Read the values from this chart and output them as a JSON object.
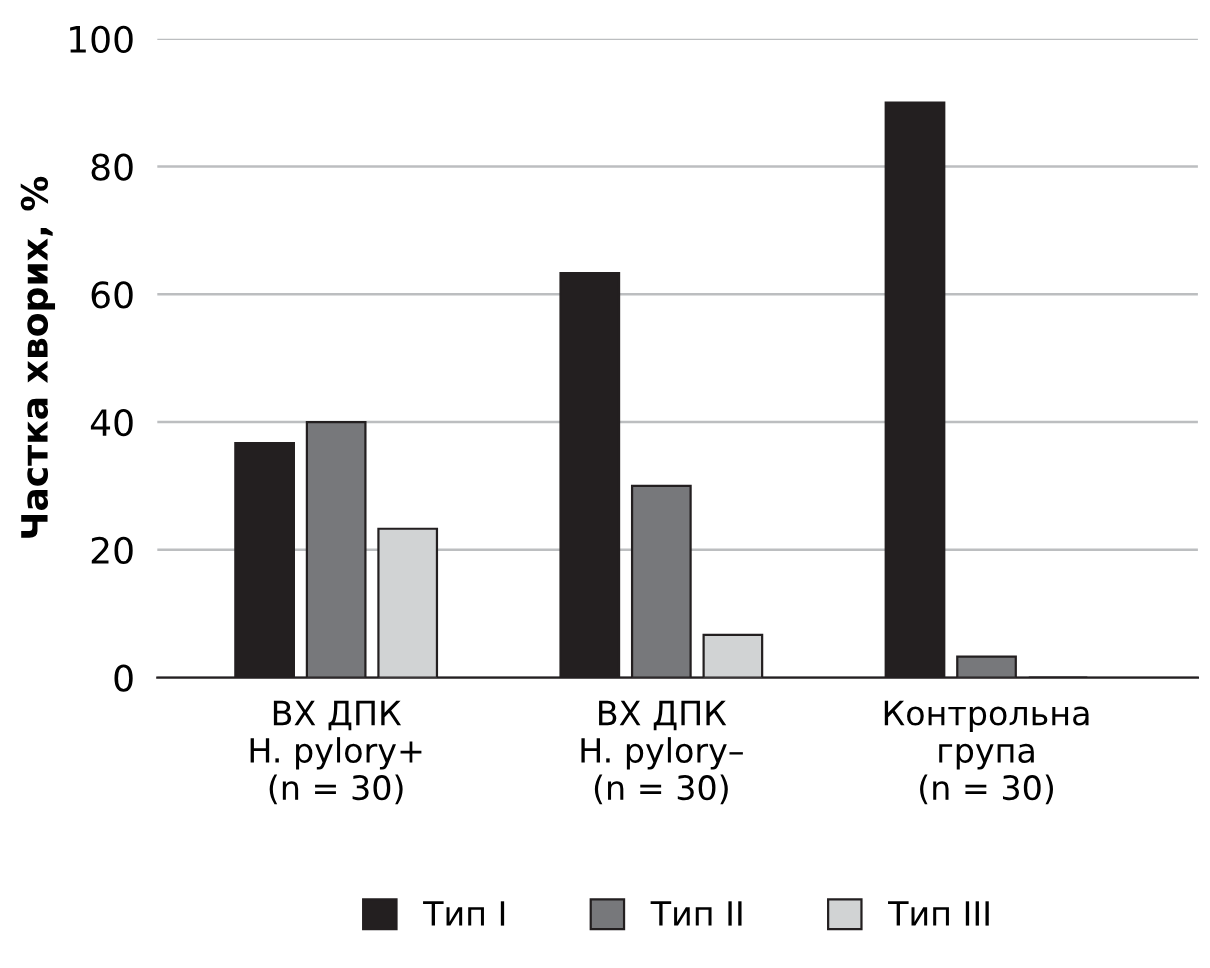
{
  "chart_data": {
    "type": "bar",
    "ylabel": "Частка хворих, %",
    "categories": [
      "ВХ ДПК\nH. pylory+\n(n = 30)",
      "ВХ ДПК\nH. pylory–\n(n = 30)",
      "Контрольна\nгрупа\n(n = 30)"
    ],
    "series": [
      {
        "name": "Тип I",
        "color": "#231f20",
        "values": [
          36.7,
          63.3,
          90
        ]
      },
      {
        "name": "Тип II",
        "color": "#77787b",
        "values": [
          40,
          30,
          3.3
        ]
      },
      {
        "name": "Тип III",
        "color": "#d1d3d4",
        "values": [
          23.3,
          6.7,
          0
        ]
      }
    ],
    "ylim": [
      0,
      100
    ],
    "yticks": [
      0,
      20,
      40,
      60,
      80,
      100
    ],
    "grid": "y",
    "legend": "bottom"
  }
}
